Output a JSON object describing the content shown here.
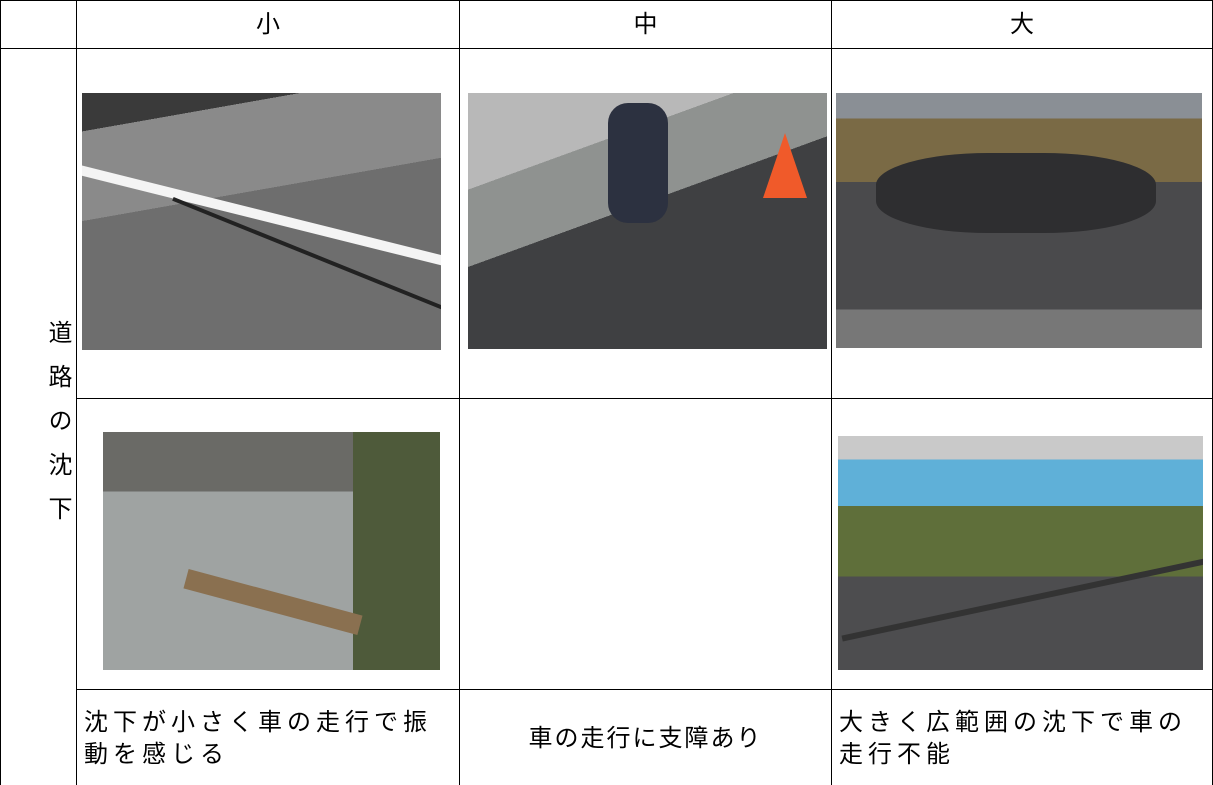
{
  "table": {
    "columns": [
      "小",
      "中",
      "大"
    ],
    "row_label": "道路の沈下",
    "descriptions": [
      "沈下が小さく車の走行で振動を感じる",
      "車の走行に支障あり",
      "大きく広範囲の沈下で車の走行不能"
    ]
  }
}
